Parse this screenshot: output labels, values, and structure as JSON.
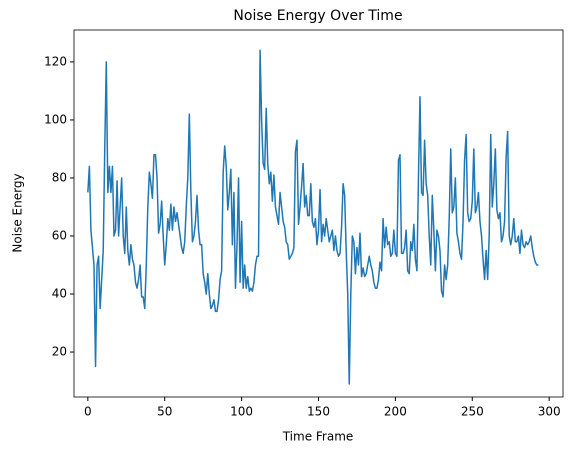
{
  "chart_data": {
    "type": "line",
    "title": "Noise Energy Over Time",
    "xlabel": "Time Frame",
    "ylabel": "Noise Energy",
    "color": "#1f77b4",
    "grid": false,
    "x": [
      0,
      1,
      2,
      3,
      4,
      5,
      6,
      7,
      8,
      9,
      10,
      11,
      12,
      13,
      14,
      15,
      16,
      17,
      18,
      19,
      20,
      21,
      22,
      23,
      24,
      25,
      26,
      27,
      28,
      29,
      30,
      31,
      32,
      33,
      34,
      35,
      36,
      37,
      38,
      39,
      40,
      41,
      42,
      43,
      44,
      45,
      46,
      47,
      48,
      49,
      50,
      51,
      52,
      53,
      54,
      55,
      56,
      57,
      58,
      59,
      60,
      61,
      62,
      63,
      64,
      65,
      66,
      67,
      68,
      69,
      70,
      71,
      72,
      73,
      74,
      75,
      76,
      77,
      78,
      79,
      80,
      81,
      82,
      83,
      84,
      85,
      86,
      87,
      88,
      89,
      90,
      91,
      92,
      93,
      94,
      95,
      96,
      97,
      98,
      99,
      100,
      101,
      102,
      103,
      104,
      105,
      106,
      107,
      108,
      109,
      110,
      111,
      112,
      113,
      114,
      115,
      116,
      117,
      118,
      119,
      120,
      121,
      122,
      123,
      124,
      125,
      126,
      127,
      128,
      129,
      130,
      131,
      132,
      133,
      134,
      135,
      136,
      137,
      138,
      139,
      140,
      141,
      142,
      143,
      144,
      145,
      146,
      147,
      148,
      149,
      150,
      151,
      152,
      153,
      154,
      155,
      156,
      157,
      158,
      159,
      160,
      161,
      162,
      163,
      164,
      165,
      166,
      167,
      168,
      169,
      170,
      171,
      172,
      173,
      174,
      175,
      176,
      177,
      178,
      179,
      180,
      181,
      182,
      183,
      184,
      185,
      186,
      187,
      188,
      189,
      190,
      191,
      192,
      193,
      194,
      195,
      196,
      197,
      198,
      199,
      200,
      201,
      202,
      203,
      204,
      205,
      206,
      207,
      208,
      209,
      210,
      211,
      212,
      213,
      214,
      215,
      216,
      217,
      218,
      219,
      220,
      221,
      222,
      223,
      224,
      225,
      226,
      227,
      228,
      229,
      230,
      231,
      232,
      233,
      234,
      235,
      236,
      237,
      238,
      239,
      240,
      241,
      242,
      243,
      244,
      245,
      246,
      247,
      248,
      249,
      250,
      251,
      252,
      253,
      254,
      255,
      256,
      257,
      258,
      259,
      260,
      261,
      262,
      263,
      264,
      265,
      266,
      267,
      268,
      269,
      270,
      271,
      272,
      273,
      274,
      275,
      276,
      277,
      278,
      279,
      280,
      281,
      282,
      283,
      284,
      285,
      286,
      287,
      288,
      289,
      290,
      291,
      292,
      293
    ],
    "values": [
      75,
      84,
      62,
      56,
      50,
      15,
      50,
      53,
      35,
      45,
      55,
      90,
      120,
      75,
      84,
      75,
      84,
      60,
      62,
      79,
      60,
      70,
      80,
      60,
      54,
      70,
      55,
      50,
      57,
      52,
      50,
      44,
      42,
      45,
      50,
      39,
      39,
      35,
      50,
      70,
      82,
      78,
      73,
      88,
      88,
      80,
      61,
      64,
      72,
      60,
      50,
      57,
      66,
      62,
      71,
      62,
      70,
      65,
      68,
      64,
      60,
      56,
      54,
      58,
      70,
      80,
      102,
      75,
      58,
      60,
      65,
      74,
      62,
      57,
      57,
      47,
      44,
      40,
      47,
      40,
      35,
      36,
      38,
      34,
      34,
      38,
      45,
      48,
      82,
      91,
      84,
      69,
      75,
      83,
      57,
      75,
      42,
      57,
      80,
      44,
      65,
      42,
      50,
      42,
      46,
      41,
      42,
      41,
      44,
      50,
      53,
      53,
      124,
      100,
      85,
      83,
      104,
      85,
      78,
      82,
      72,
      81,
      70,
      67,
      64,
      75,
      70,
      65,
      63,
      58,
      57,
      52,
      53,
      54,
      56,
      89,
      93,
      64,
      70,
      77,
      85,
      70,
      74,
      67,
      67,
      78,
      65,
      63,
      66,
      57,
      62,
      76,
      58,
      64,
      60,
      66,
      62,
      58,
      60,
      62,
      55,
      60,
      55,
      53,
      54,
      63,
      78,
      74,
      55,
      40,
      9,
      40,
      60,
      58,
      47,
      56,
      50,
      61,
      46,
      49,
      46,
      47,
      50,
      53,
      50,
      48,
      44,
      42,
      42,
      45,
      51,
      48,
      66,
      56,
      63,
      57,
      58,
      53,
      54,
      62,
      54,
      53,
      86,
      88,
      54,
      54,
      56,
      62,
      48,
      47,
      58,
      55,
      64,
      52,
      48,
      80,
      108,
      75,
      74,
      93,
      78,
      74,
      60,
      50,
      74,
      62,
      48,
      62,
      60,
      55,
      41,
      39,
      50,
      45,
      50,
      66,
      90,
      68,
      70,
      80,
      61,
      58,
      54,
      52,
      65,
      86,
      95,
      68,
      65,
      66,
      72,
      90,
      68,
      70,
      75,
      65,
      60,
      52,
      45,
      55,
      45,
      60,
      95,
      70,
      78,
      90,
      69,
      66,
      68,
      58,
      60,
      65,
      87,
      96,
      60,
      57,
      60,
      66,
      58,
      58,
      60,
      54,
      62,
      57,
      56,
      58,
      57,
      58,
      60,
      56,
      53,
      51,
      50,
      50
    ],
    "xlim": [
      -9,
      309
    ],
    "xticks": [
      0,
      50,
      100,
      150,
      200,
      250,
      300
    ],
    "ylim": [
      4.5,
      131
    ],
    "yticks": [
      20,
      40,
      60,
      80,
      100,
      120
    ]
  }
}
